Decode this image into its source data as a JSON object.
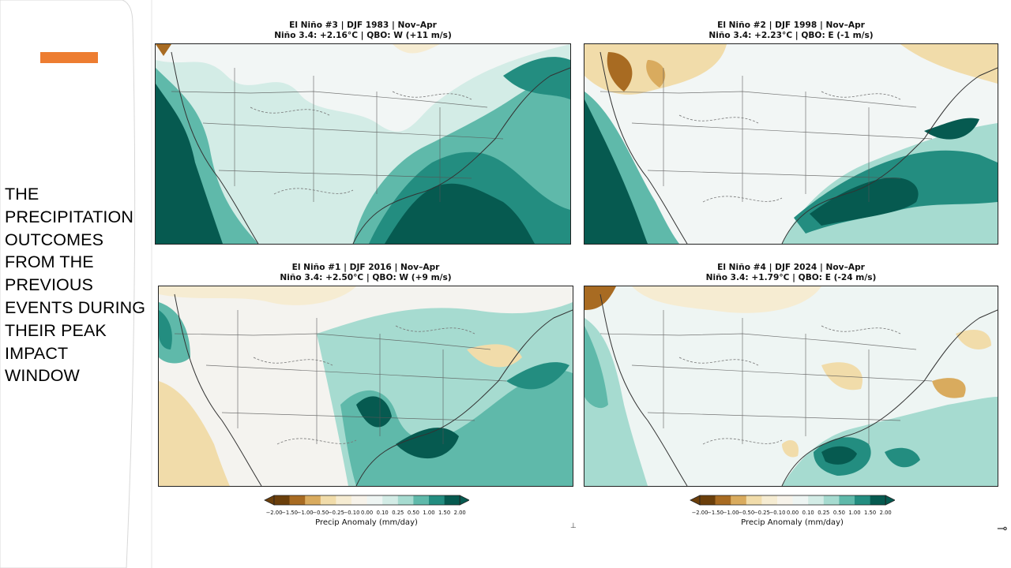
{
  "slide": {
    "title_lines": [
      "THE",
      "PRECIPITATION",
      "OUTCOMES",
      "FROM THE",
      "PREVIOUS",
      "EVENTS DURING",
      "THEIR PEAK",
      "IMPACT",
      "WINDOW"
    ],
    "accent_color": "#ED7D31"
  },
  "panels": [
    {
      "title": "El Niño #3 | DJF 1983  |  Nov–Apr",
      "subtitle": "Niño 3.4: +2.16°C  |  QBO: W (+11 m/s)"
    },
    {
      "title": "El Niño #2 | DJF 1998  |  Nov–Apr",
      "subtitle": "Niño 3.4: +2.23°C  |  QBO: E (-1 m/s)"
    },
    {
      "title": "El Niño #1 | DJF 2016  |  Nov–Apr",
      "subtitle": "Niño 3.4: +2.50°C  |  QBO: W (+9 m/s)"
    },
    {
      "title": "El Niño #4 | DJF 2024  |  Nov–Apr",
      "subtitle": "Niño 3.4: +1.79°C  |  QBO: E (-24 m/s)"
    }
  ],
  "colorbar": {
    "label": "Precip Anomaly (mm/day)",
    "ticks": [
      "−2.00",
      "−1.50",
      "−1.00",
      "−0.50",
      "−0.25",
      "−0.10",
      "0.00",
      "0.10",
      "0.25",
      "0.50",
      "1.00",
      "1.50",
      "2.00"
    ],
    "colors": [
      "#6b3f0b",
      "#a86b22",
      "#d9ab5e",
      "#f1dcaa",
      "#f6ecd2",
      "#f7f3ea",
      "#eef5f3",
      "#d3ece6",
      "#a6dbd0",
      "#5fb9aa",
      "#238d80",
      "#065a50"
    ]
  },
  "marks": {
    "left_tick": "⊥",
    "right_icon": "⊸"
  }
}
